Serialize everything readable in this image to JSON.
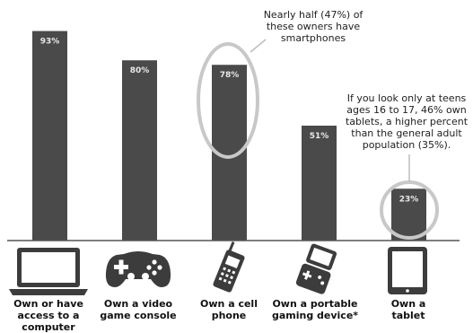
{
  "chart_data": {
    "type": "bar",
    "categories": [
      "Own or have access to a computer",
      "Own a video game console",
      "Own a cell phone",
      "Own a portable gaming device*",
      "Own a tablet"
    ],
    "values": [
      93,
      80,
      78,
      51,
      23
    ],
    "value_labels": [
      "93%",
      "80%",
      "78%",
      "51%",
      "23%"
    ],
    "ylim": [
      0,
      100
    ],
    "grid": false,
    "bar_color": "#4a4a4a",
    "value_label_color": "#e8e8e8",
    "annotations": [
      {
        "target_category": "Own a cell phone",
        "text": "Nearly half (47%) of these owners have smartphones"
      },
      {
        "target_category": "Own a tablet",
        "text": "If you look only at teens ages 16 to 17, 46% own tablets, a higher percent than the general adult population (35%)."
      }
    ],
    "icons": [
      "laptop-icon",
      "game-controller-icon",
      "cell-phone-icon",
      "portable-gaming-device-icon",
      "tablet-icon"
    ]
  },
  "labels": {
    "cat0": [
      "Own or have",
      "access to a",
      "computer"
    ],
    "cat1": [
      "Own a video",
      "game console"
    ],
    "cat2": [
      "Own a cell",
      "phone"
    ],
    "cat3": [
      "Own a portable",
      "gaming device*"
    ],
    "cat4": [
      "Own a",
      "tablet"
    ]
  },
  "notes": {
    "phone": [
      "Nearly half (47%) of",
      "these owners have",
      "smartphones"
    ],
    "tablet": [
      "If you look only at teens",
      "ages 16 to 17, 46% own",
      "tablets, a higher percent",
      "than the general adult",
      "population (35%)."
    ]
  }
}
